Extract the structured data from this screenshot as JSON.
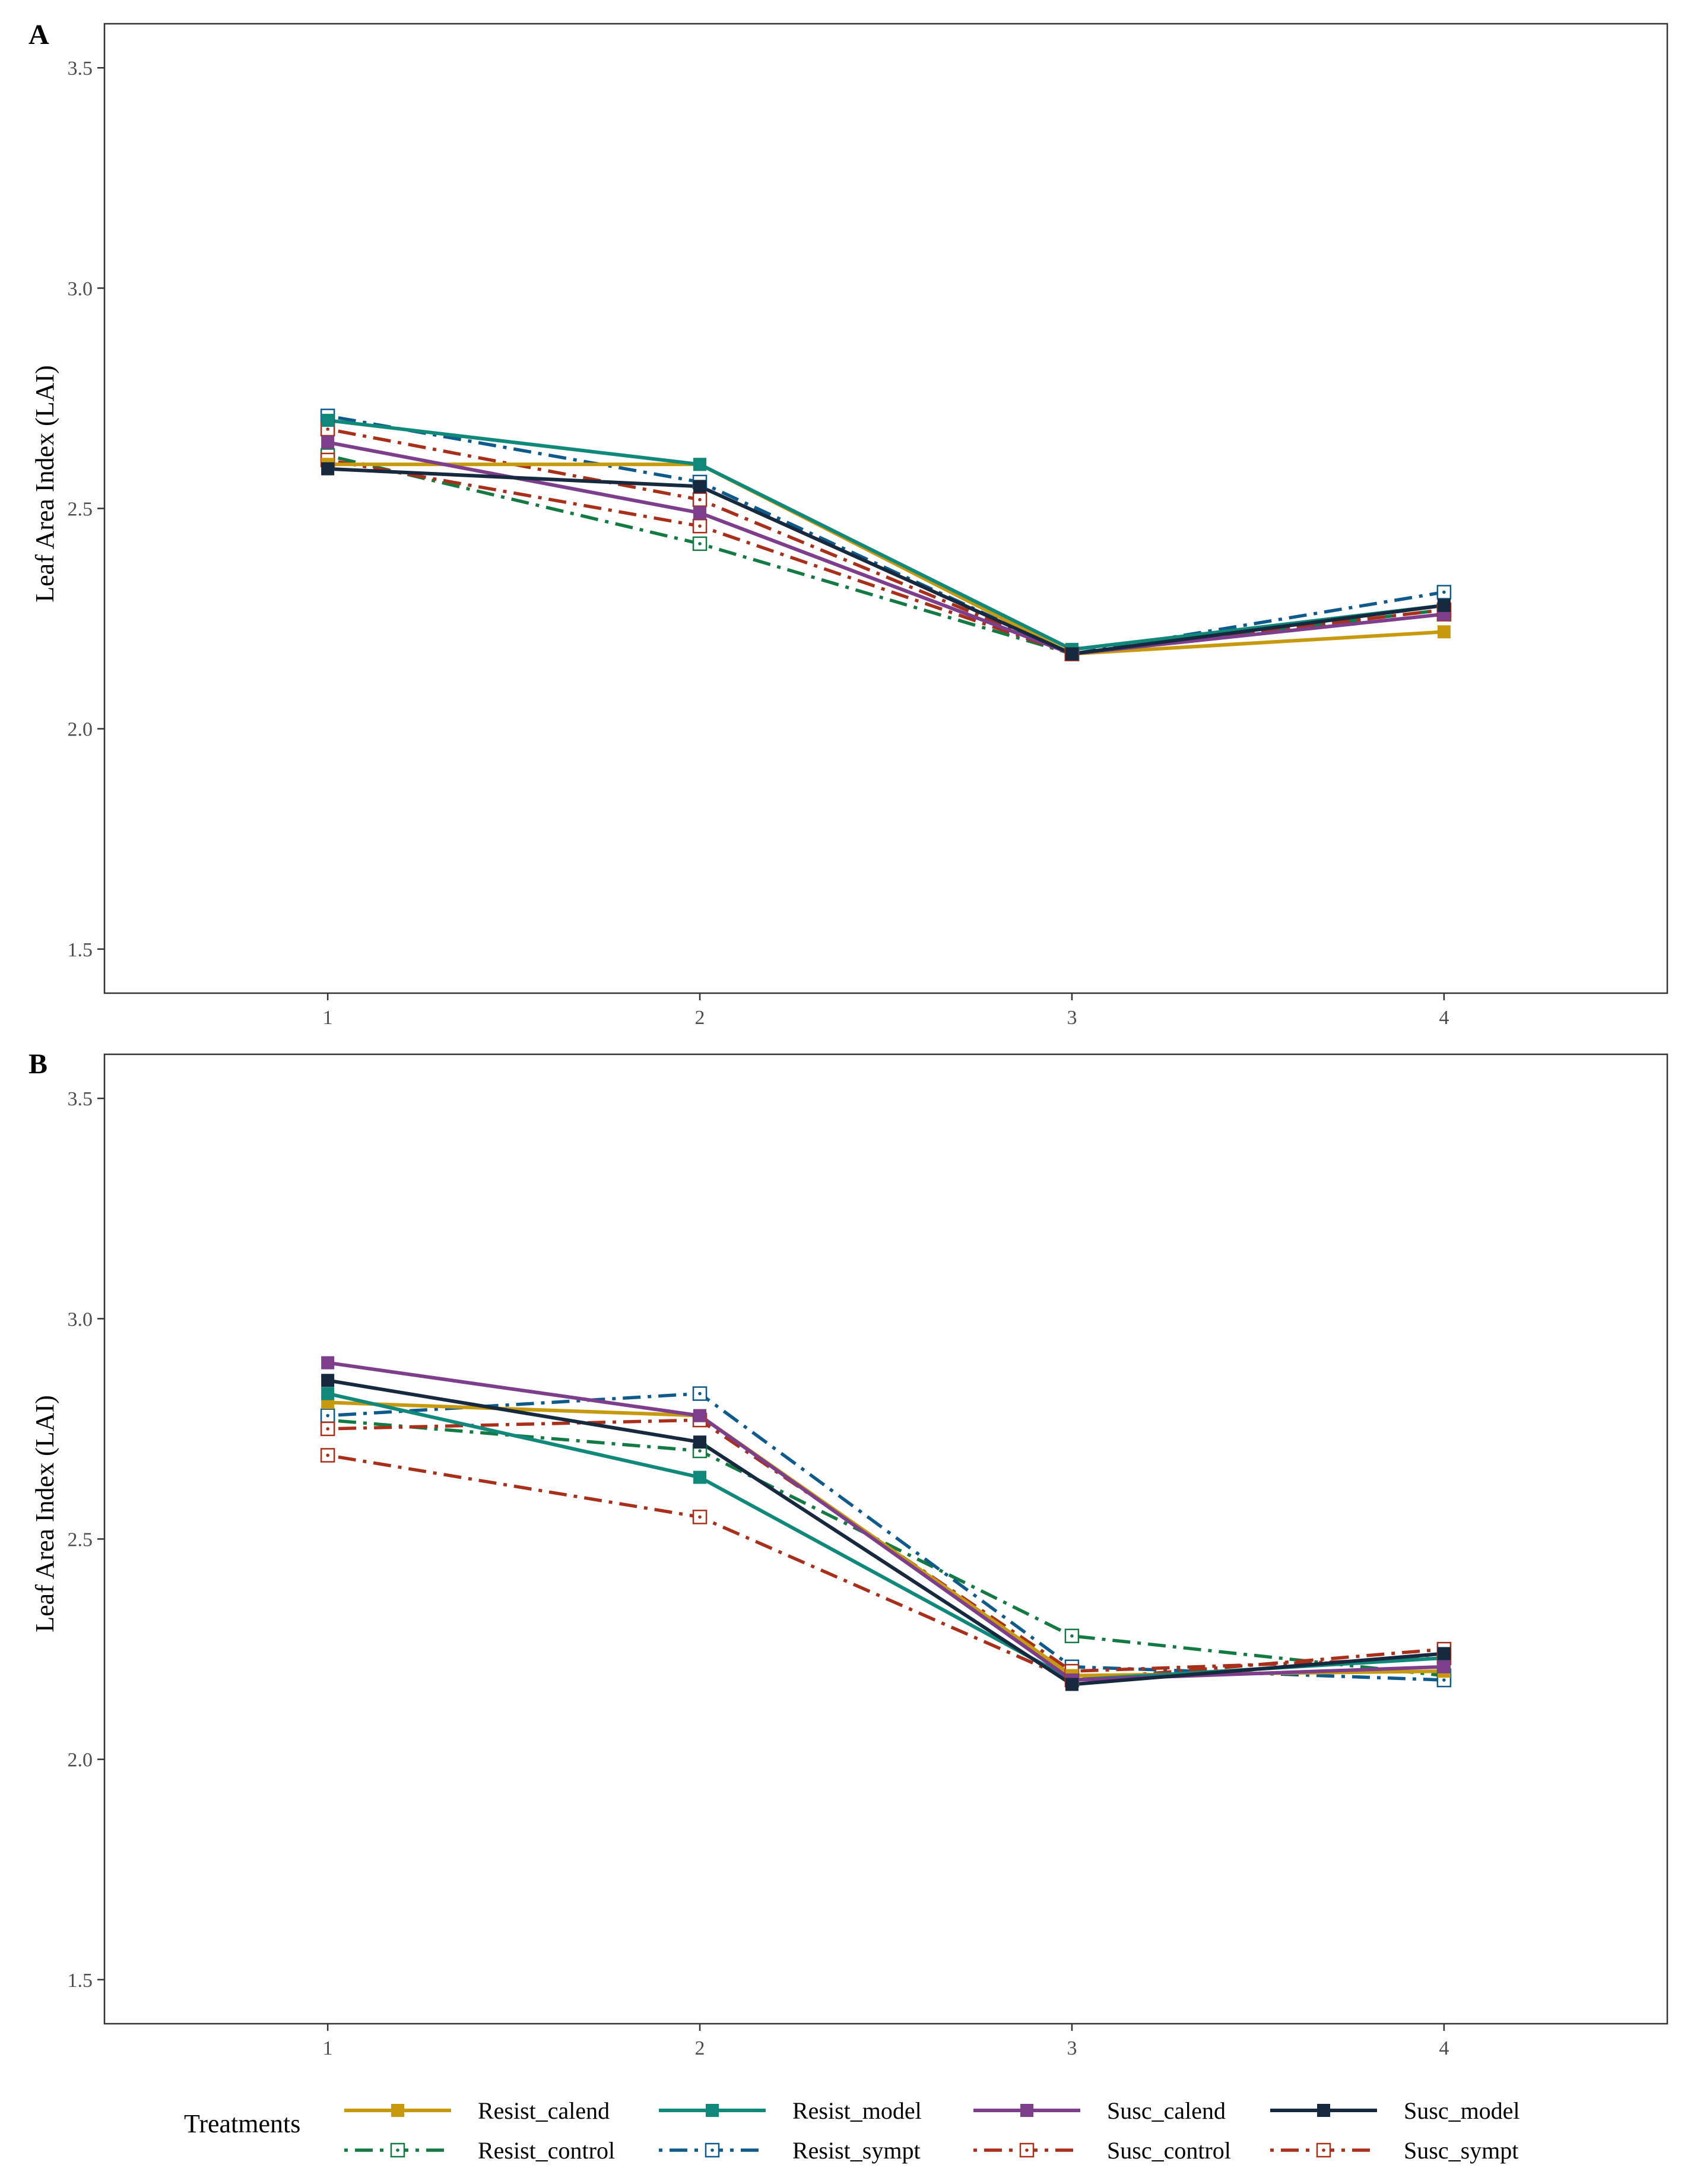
{
  "chart_data": [
    {
      "type": "line",
      "panel_label": "A",
      "ylabel": "Leaf Area Index (LAI)",
      "xlabel": "",
      "x": [
        1,
        2,
        3,
        4
      ],
      "x_tick_labels": [
        "1",
        "2",
        "3",
        "4"
      ],
      "xlim": [
        0.4,
        4.6
      ],
      "ylim": [
        1.4,
        3.6
      ],
      "y_ticks": [
        1.5,
        2.0,
        2.5,
        3.0,
        3.5
      ],
      "y_tick_labels": [
        "1.5",
        "2.0",
        "2.5",
        "3.0",
        "3.5"
      ],
      "grid": false,
      "series": [
        {
          "name": "Resist_calend",
          "values": [
            2.6,
            2.6,
            2.17,
            2.22
          ]
        },
        {
          "name": "Resist_model",
          "values": [
            2.7,
            2.6,
            2.18,
            2.28
          ]
        },
        {
          "name": "Susc_calend",
          "values": [
            2.65,
            2.49,
            2.17,
            2.26
          ]
        },
        {
          "name": "Susc_model",
          "values": [
            2.59,
            2.55,
            2.17,
            2.28
          ]
        },
        {
          "name": "Resist_control",
          "values": [
            2.62,
            2.42,
            2.17,
            2.27
          ]
        },
        {
          "name": "Resist_sympt",
          "values": [
            2.71,
            2.56,
            2.17,
            2.31
          ]
        },
        {
          "name": "Susc_control",
          "values": [
            2.61,
            2.46,
            2.17,
            2.26
          ]
        },
        {
          "name": "Susc_sympt",
          "values": [
            2.68,
            2.52,
            2.17,
            2.27
          ]
        }
      ]
    },
    {
      "type": "line",
      "panel_label": "B",
      "ylabel": "Leaf Area Index (LAI)",
      "xlabel": "",
      "x": [
        1,
        2,
        3,
        4
      ],
      "x_tick_labels": [
        "1",
        "2",
        "3",
        "4"
      ],
      "xlim": [
        0.4,
        4.6
      ],
      "ylim": [
        1.4,
        3.6
      ],
      "y_ticks": [
        1.5,
        2.0,
        2.5,
        3.0,
        3.5
      ],
      "y_tick_labels": [
        "1.5",
        "2.0",
        "2.5",
        "3.0",
        "3.5"
      ],
      "grid": false,
      "series": [
        {
          "name": "Resist_calend",
          "values": [
            2.81,
            2.78,
            2.19,
            2.2
          ]
        },
        {
          "name": "Resist_model",
          "values": [
            2.83,
            2.64,
            2.18,
            2.23
          ]
        },
        {
          "name": "Susc_calend",
          "values": [
            2.9,
            2.78,
            2.18,
            2.21
          ]
        },
        {
          "name": "Susc_model",
          "values": [
            2.86,
            2.72,
            2.17,
            2.24
          ]
        },
        {
          "name": "Resist_control",
          "values": [
            2.77,
            2.7,
            2.28,
            2.19
          ]
        },
        {
          "name": "Resist_sympt",
          "values": [
            2.78,
            2.83,
            2.21,
            2.18
          ]
        },
        {
          "name": "Susc_control",
          "values": [
            2.69,
            2.55,
            2.18,
            2.25
          ]
        },
        {
          "name": "Susc_sympt",
          "values": [
            2.75,
            2.77,
            2.2,
            2.23
          ]
        }
      ]
    }
  ],
  "legend": {
    "title": "Treatments",
    "position": "bottom",
    "entries": [
      {
        "name": "Resist_calend",
        "color": "#C79A0E",
        "dash": "solid",
        "marker": "filled-square"
      },
      {
        "name": "Resist_model",
        "color": "#10897A",
        "dash": "solid",
        "marker": "filled-square"
      },
      {
        "name": "Susc_calend",
        "color": "#7D3E8C",
        "dash": "solid",
        "marker": "filled-square"
      },
      {
        "name": "Susc_model",
        "color": "#16293E",
        "dash": "solid",
        "marker": "filled-square"
      },
      {
        "name": "Resist_control",
        "color": "#137A43",
        "dash": "dotdash",
        "marker": "open-square-dot"
      },
      {
        "name": "Resist_sympt",
        "color": "#0E5A8A",
        "dash": "dotdash",
        "marker": "open-square-dot"
      },
      {
        "name": "Susc_control",
        "color": "#A8301A",
        "dash": "dotdash",
        "marker": "open-square-dot"
      },
      {
        "name": "Susc_sympt",
        "color": "#A8301A",
        "dash": "dotdash",
        "marker": "open-square-dot"
      }
    ]
  }
}
